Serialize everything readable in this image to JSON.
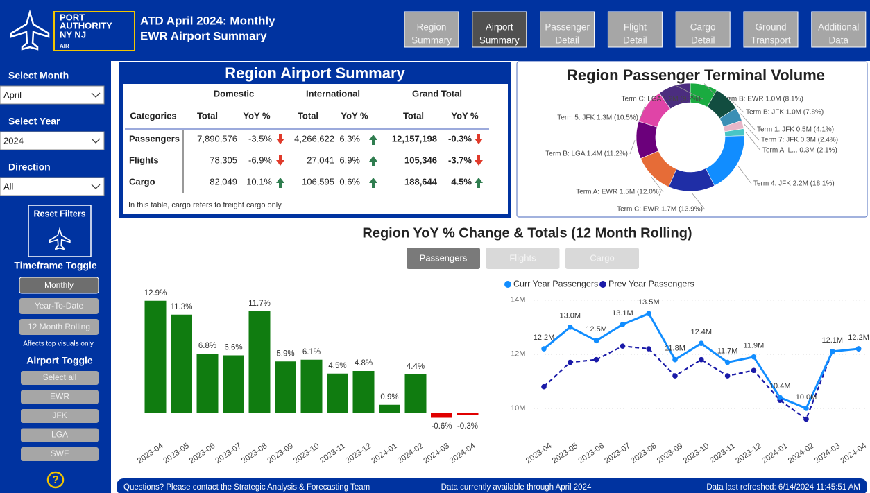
{
  "header": {
    "logo": [
      "PORT",
      "AUTHORITY",
      "NY NJ",
      "AIR"
    ],
    "title_lines": [
      "ATD April 2024: Monthly",
      "EWR Airport Summary"
    ],
    "tabs": [
      [
        "Region",
        "Summary"
      ],
      [
        "Airport",
        "Summary"
      ],
      [
        "Passenger",
        "Detail"
      ],
      [
        "Flight",
        "Detail"
      ],
      [
        "Cargo",
        "Detail"
      ],
      [
        "Ground",
        "Transport"
      ],
      [
        "Additional",
        "Data"
      ]
    ],
    "active_tab": 1
  },
  "sidebar": {
    "filters": [
      {
        "label": "Select Month",
        "value": "April"
      },
      {
        "label": "Select Year",
        "value": "2024"
      },
      {
        "label": "Direction",
        "value": "All"
      }
    ],
    "reset_button": "Reset Filters",
    "timeframe": {
      "title": "Timeframe Toggle",
      "options": [
        "Monthly",
        "Year-To-Date",
        "12 Month Rolling"
      ],
      "active": 0,
      "note": "Affects top visuals only"
    },
    "airport": {
      "title": "Airport Toggle",
      "options": [
        "Select all",
        "EWR",
        "JFK",
        "LGA",
        "SWF"
      ]
    },
    "help": "?"
  },
  "summary_table": {
    "title": "Region Airport Summary",
    "groups": [
      "Domestic",
      "International",
      "Grand Total"
    ],
    "columns": [
      "Categories",
      "Total",
      "YoY %",
      "Total",
      "YoY %",
      "Total",
      "YoY %"
    ],
    "rows": [
      [
        "Passengers",
        "7,890,576",
        "-3.5%",
        "4,266,622",
        "6.3%",
        "12,157,198",
        "-0.3%"
      ],
      [
        "Flights",
        "78,305",
        "-6.9%",
        "27,041",
        "6.9%",
        "105,346",
        "-3.7%"
      ],
      [
        "Cargo",
        "82,049",
        "10.1%",
        "106,595",
        "0.6%",
        "188,644",
        "4.5%"
      ]
    ],
    "note": "In this table, cargo refers to freight cargo only."
  },
  "donut": {
    "type": "pie",
    "title": "Region Passenger Terminal Volume",
    "labels": [
      "Term B: EWR 1.0M (8.1%)",
      "Term B: JFK 1.0M (7.8%)",
      "Term 1: JFK 0.5M (4.1%)",
      "Term 7: JFK 0.3M (2.4%)",
      "Term A: L... 0.3M (2.1%)",
      "Term 4: JFK 2.2M (18.1%)",
      "Term C: EWR 1.7M (13.9%)",
      "Term A: EWR 1.5M (12.0%)",
      "Term B: LGA 1.4M (11.2%)",
      "Term 5: JFK 1.3M (10.5%)",
      "Term C: LGA 1.2M (9.7%)"
    ],
    "values": [
      8.1,
      7.8,
      4.1,
      2.4,
      2.1,
      18.1,
      13.9,
      12.0,
      11.2,
      10.5,
      9.7
    ],
    "colors": [
      "#1aab40",
      "#124d40",
      "#3b8fb5",
      "#e7b6c8",
      "#49c5c5",
      "#118dff",
      "#1f2ea6",
      "#e66c37",
      "#6b007b",
      "#e044a7",
      "#4b2d7f"
    ]
  },
  "section_title": "Region YoY % Change & Totals (12 Month Rolling)",
  "metric_buttons": [
    "Passengers",
    "Flights",
    "Cargo"
  ],
  "active_metric": 0,
  "bar_chart": {
    "type": "bar",
    "categories": [
      "2023-04",
      "2023-05",
      "2023-06",
      "2023-07",
      "2023-08",
      "2023-09",
      "2023-10",
      "2023-11",
      "2023-12",
      "2024-01",
      "2024-02",
      "2024-03",
      "2024-04"
    ],
    "values": [
      12.9,
      11.3,
      6.8,
      6.6,
      11.7,
      5.9,
      6.1,
      4.5,
      4.8,
      0.9,
      4.4,
      -0.6,
      -0.3
    ],
    "value_labels": [
      "12.9%",
      "11.3%",
      "6.8%",
      "6.6%",
      "11.7%",
      "5.9%",
      "6.1%",
      "4.5%",
      "4.8%",
      "0.9%",
      "4.4%",
      "-0.6%",
      "-0.3%"
    ],
    "positive_color": "#107c10",
    "negative_color": "#e00000",
    "ylim": [
      -1.2,
      14
    ]
  },
  "line_chart": {
    "type": "line",
    "categories": [
      "2023-04",
      "2023-05",
      "2023-06",
      "2023-07",
      "2023-08",
      "2023-09",
      "2023-10",
      "2023-11",
      "2023-12",
      "2024-01",
      "2024-02",
      "2024-03",
      "2024-04"
    ],
    "series": [
      {
        "name": "Curr Year Passengers",
        "color": "#118dff",
        "line_style": "solid",
        "values": [
          12.2,
          13.0,
          12.5,
          13.1,
          13.5,
          11.8,
          12.4,
          11.7,
          11.9,
          10.4,
          10.0,
          12.1,
          12.2
        ],
        "value_labels": [
          "12.2M",
          "13.0M",
          "12.5M",
          "13.1M",
          "13.5M",
          "11.8M",
          "12.4M",
          "11.7M",
          "11.9M",
          "10.4M",
          "10.0M",
          "12.1M",
          "12.2M"
        ]
      },
      {
        "name": "Prev Year Passengers",
        "color": "#1a1aa8",
        "line_style": "dashed",
        "values": [
          10.8,
          11.7,
          11.8,
          12.3,
          12.2,
          11.2,
          11.8,
          11.2,
          11.4,
          10.3,
          9.6,
          12.1,
          12.2
        ]
      }
    ],
    "ylim": [
      9.1,
      14.2
    ],
    "yticks": [
      {
        "value": 10,
        "label": "10M"
      },
      {
        "value": 12,
        "label": "12M"
      },
      {
        "value": 14,
        "label": "14M"
      }
    ],
    "grid": true
  },
  "footer": [
    "Questions? Please contact the Strategic Analysis & Forecasting Team",
    "Data currently available through April 2024",
    "Data last refreshed:  6/14/2024 11:45:51 AM"
  ]
}
